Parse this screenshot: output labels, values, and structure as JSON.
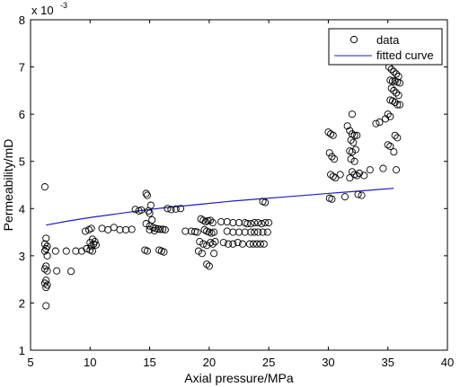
{
  "chart_data": {
    "type": "scatter",
    "xlabel": "Axial pressure/MPa",
    "ylabel": "Permeability/mD",
    "y_multiplier_base": "x 10",
    "y_multiplier_exp": "-3",
    "xlim": [
      5,
      40
    ],
    "ylim": [
      1,
      8
    ],
    "xticks": [
      5,
      10,
      15,
      20,
      25,
      30,
      35,
      40
    ],
    "yticks": [
      1,
      2,
      3,
      4,
      5,
      6,
      7,
      8
    ],
    "grid": false,
    "legend_position": "top-right",
    "colors": {
      "data": "#000000",
      "fit": "#1f1fbf",
      "axes": "#000000"
    },
    "series": [
      {
        "name": "data",
        "marker": "circle-open",
        "points": [
          [
            6.2,
            4.46
          ],
          [
            6.3,
            3.37
          ],
          [
            6.2,
            3.25
          ],
          [
            6.4,
            3.2
          ],
          [
            6.3,
            3.15
          ],
          [
            6.2,
            3.1
          ],
          [
            6.4,
            3.0
          ],
          [
            6.3,
            2.78
          ],
          [
            6.2,
            2.72
          ],
          [
            6.4,
            2.68
          ],
          [
            6.3,
            2.48
          ],
          [
            6.2,
            2.42
          ],
          [
            6.4,
            2.38
          ],
          [
            6.3,
            2.33
          ],
          [
            6.3,
            1.94
          ],
          [
            7.1,
            3.1
          ],
          [
            7.2,
            2.68
          ],
          [
            8.0,
            3.1
          ],
          [
            8.4,
            2.67
          ],
          [
            8.8,
            3.1
          ],
          [
            9.3,
            3.1
          ],
          [
            9.7,
            3.15
          ],
          [
            9.6,
            3.52
          ],
          [
            9.9,
            3.55
          ],
          [
            10.1,
            3.58
          ],
          [
            10.2,
            3.35
          ],
          [
            10.0,
            3.28
          ],
          [
            10.3,
            3.25
          ],
          [
            10.1,
            3.2
          ],
          [
            10.4,
            3.3
          ],
          [
            10.5,
            3.23
          ],
          [
            10.0,
            3.12
          ],
          [
            10.2,
            3.1
          ],
          [
            11.0,
            3.58
          ],
          [
            11.5,
            3.55
          ],
          [
            12.0,
            3.6
          ],
          [
            12.5,
            3.55
          ],
          [
            13.0,
            3.55
          ],
          [
            13.5,
            3.56
          ],
          [
            13.8,
            3.98
          ],
          [
            14.1,
            3.95
          ],
          [
            14.3,
            3.97
          ],
          [
            14.7,
            4.32
          ],
          [
            14.8,
            4.28
          ],
          [
            15.1,
            4.07
          ],
          [
            14.9,
            3.95
          ],
          [
            15.0,
            3.9
          ],
          [
            15.2,
            3.76
          ],
          [
            14.7,
            3.68
          ],
          [
            15.0,
            3.63
          ],
          [
            15.3,
            3.6
          ],
          [
            15.5,
            3.58
          ],
          [
            15.7,
            3.57
          ],
          [
            15.9,
            3.56
          ],
          [
            16.1,
            3.56
          ],
          [
            16.3,
            3.55
          ],
          [
            15.0,
            3.55
          ],
          [
            15.4,
            3.53
          ],
          [
            14.6,
            3.12
          ],
          [
            14.8,
            3.1
          ],
          [
            15.8,
            3.12
          ],
          [
            16.0,
            3.1
          ],
          [
            16.2,
            3.08
          ],
          [
            16.5,
            4.0
          ],
          [
            16.8,
            3.98
          ],
          [
            17.2,
            3.99
          ],
          [
            17.6,
            4.0
          ],
          [
            18.0,
            3.52
          ],
          [
            18.5,
            3.52
          ],
          [
            18.8,
            3.51
          ],
          [
            19.0,
            3.5
          ],
          [
            19.3,
            3.78
          ],
          [
            19.5,
            3.75
          ],
          [
            19.7,
            3.72
          ],
          [
            19.9,
            3.74
          ],
          [
            20.1,
            3.75
          ],
          [
            20.3,
            3.7
          ],
          [
            19.6,
            3.55
          ],
          [
            19.8,
            3.52
          ],
          [
            20.0,
            3.5
          ],
          [
            20.2,
            3.48
          ],
          [
            20.4,
            3.5
          ],
          [
            19.2,
            3.3
          ],
          [
            19.5,
            3.25
          ],
          [
            19.8,
            3.22
          ],
          [
            20.1,
            3.28
          ],
          [
            20.3,
            3.25
          ],
          [
            20.5,
            3.3
          ],
          [
            19.1,
            3.1
          ],
          [
            19.4,
            3.05
          ],
          [
            20.4,
            3.05
          ],
          [
            19.8,
            2.82
          ],
          [
            20.0,
            2.78
          ],
          [
            21.0,
            3.72
          ],
          [
            21.5,
            3.72
          ],
          [
            22.0,
            3.7
          ],
          [
            22.5,
            3.7
          ],
          [
            23.0,
            3.7
          ],
          [
            21.5,
            3.52
          ],
          [
            22.0,
            3.5
          ],
          [
            22.5,
            3.5
          ],
          [
            23.0,
            3.5
          ],
          [
            21.2,
            3.28
          ],
          [
            21.6,
            3.25
          ],
          [
            22.0,
            3.25
          ],
          [
            22.4,
            3.28
          ],
          [
            22.8,
            3.25
          ],
          [
            23.2,
            3.68
          ],
          [
            23.5,
            3.68
          ],
          [
            23.8,
            3.7
          ],
          [
            24.1,
            3.7
          ],
          [
            24.4,
            3.68
          ],
          [
            24.7,
            3.7
          ],
          [
            25.0,
            3.7
          ],
          [
            23.5,
            3.5
          ],
          [
            23.8,
            3.5
          ],
          [
            24.1,
            3.5
          ],
          [
            24.5,
            3.5
          ],
          [
            24.9,
            3.5
          ],
          [
            23.4,
            3.25
          ],
          [
            23.7,
            3.25
          ],
          [
            24.0,
            3.25
          ],
          [
            24.3,
            3.25
          ],
          [
            24.6,
            3.25
          ],
          [
            24.5,
            4.15
          ],
          [
            24.7,
            4.13
          ],
          [
            30.0,
            5.62
          ],
          [
            30.2,
            5.58
          ],
          [
            30.4,
            5.55
          ],
          [
            30.1,
            5.18
          ],
          [
            30.3,
            5.1
          ],
          [
            30.5,
            5.05
          ],
          [
            30.2,
            4.72
          ],
          [
            30.4,
            4.68
          ],
          [
            30.6,
            4.65
          ],
          [
            30.1,
            4.22
          ],
          [
            30.3,
            4.2
          ],
          [
            31.0,
            4.72
          ],
          [
            31.4,
            4.25
          ],
          [
            31.8,
            4.65
          ],
          [
            32.0,
            6.0
          ],
          [
            31.6,
            5.75
          ],
          [
            31.8,
            5.65
          ],
          [
            32.0,
            5.58
          ],
          [
            32.2,
            5.55
          ],
          [
            32.4,
            5.55
          ],
          [
            31.9,
            5.45
          ],
          [
            32.1,
            5.4
          ],
          [
            31.8,
            5.22
          ],
          [
            32.0,
            5.2
          ],
          [
            32.3,
            5.25
          ],
          [
            31.9,
            5.05
          ],
          [
            32.2,
            5.0
          ],
          [
            32.0,
            4.78
          ],
          [
            32.2,
            4.72
          ],
          [
            32.4,
            4.7
          ],
          [
            32.6,
            4.75
          ],
          [
            32.5,
            4.3
          ],
          [
            32.8,
            4.28
          ],
          [
            33.0,
            4.7
          ],
          [
            33.5,
            4.82
          ],
          [
            34.0,
            5.8
          ],
          [
            34.3,
            5.83
          ],
          [
            34.6,
            4.85
          ],
          [
            34.8,
            5.9
          ],
          [
            35.0,
            6.0
          ],
          [
            35.2,
            5.95
          ],
          [
            35.0,
            5.35
          ],
          [
            35.2,
            5.32
          ],
          [
            35.1,
            7.0
          ],
          [
            35.3,
            6.95
          ],
          [
            35.5,
            6.9
          ],
          [
            35.7,
            6.85
          ],
          [
            35.9,
            6.8
          ],
          [
            35.2,
            6.72
          ],
          [
            35.4,
            6.7
          ],
          [
            35.6,
            6.7
          ],
          [
            35.8,
            6.68
          ],
          [
            36.0,
            6.66
          ],
          [
            35.3,
            6.55
          ],
          [
            35.5,
            6.5
          ],
          [
            35.7,
            6.45
          ],
          [
            35.9,
            6.4
          ],
          [
            35.2,
            6.3
          ],
          [
            35.4,
            6.28
          ],
          [
            35.6,
            6.25
          ],
          [
            35.8,
            6.2
          ],
          [
            36.0,
            6.2
          ],
          [
            35.6,
            5.55
          ],
          [
            35.8,
            5.5
          ],
          [
            35.5,
            5.2
          ],
          [
            35.7,
            4.82
          ]
        ]
      },
      {
        "name": "fitted curve",
        "line": "solid",
        "curve_x": [
          6.3,
          8,
          10,
          12,
          14,
          16,
          18,
          20,
          22,
          24,
          26,
          28,
          30,
          32,
          34,
          35.5
        ],
        "curve_y": [
          3.65,
          3.73,
          3.81,
          3.88,
          3.95,
          4.01,
          4.06,
          4.11,
          4.16,
          4.2,
          4.24,
          4.28,
          4.32,
          4.36,
          4.4,
          4.43
        ]
      }
    ]
  }
}
